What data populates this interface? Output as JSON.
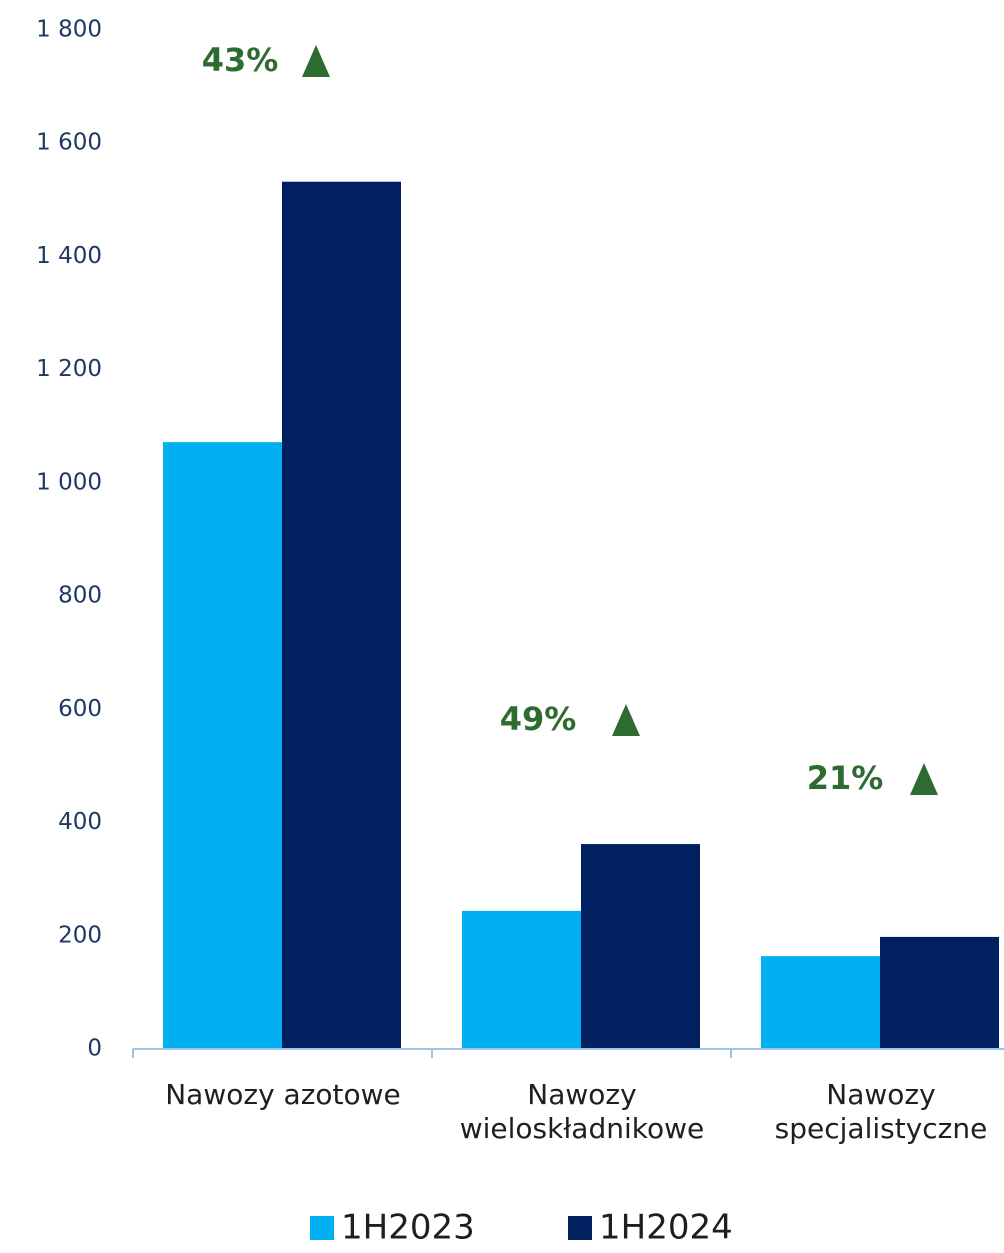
{
  "chart_data": {
    "type": "bar",
    "categories": [
      "Nawozy azotowe",
      "Nawozy\nwieloskładnikowe",
      "Nawozy\nspecjalistyczne"
    ],
    "series": [
      {
        "name": "1H2023",
        "color": "#00b0f0",
        "values": [
          1072,
          244,
          164
        ]
      },
      {
        "name": "1H2024",
        "color": "#002060",
        "values": [
          1532,
          362,
          198
        ]
      }
    ],
    "annotations": [
      "43%",
      "49%",
      "21%"
    ],
    "annotation_color": "#2e6b30",
    "ylim": [
      0,
      1800
    ],
    "yticks": [
      0,
      200,
      400,
      600,
      800,
      {
        "value": 1000,
        "label": "1 000"
      },
      {
        "value": 1200,
        "label": "1 200"
      },
      {
        "value": 1400,
        "label": "1 400"
      },
      {
        "value": 1600,
        "label": "1 600"
      },
      {
        "value": 1800,
        "label": "1 800"
      }
    ],
    "legend": "bottom"
  }
}
